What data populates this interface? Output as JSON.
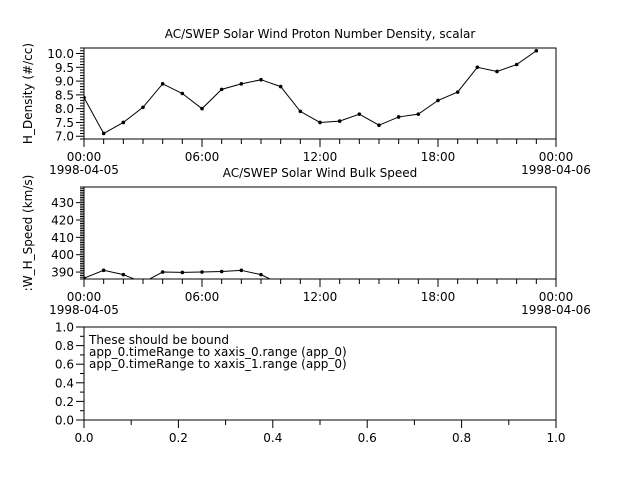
{
  "chart_data": [
    {
      "type": "line",
      "title": "AC/SWEP  Solar Wind Proton Number Density, scalar",
      "ylabel": "H_Density (#/cc)",
      "xlabel": "",
      "x_ticks": [
        {
          "label": "00:00",
          "sublabel": "1998-04-05",
          "hour": 0
        },
        {
          "label": "06:00",
          "sublabel": "",
          "hour": 6
        },
        {
          "label": "12:00",
          "sublabel": "",
          "hour": 12
        },
        {
          "label": "18:00",
          "sublabel": "",
          "hour": 18
        },
        {
          "label": "00:00",
          "sublabel": "1998-04-06",
          "hour": 24
        }
      ],
      "xlim": [
        "1998-04-05 00:00",
        "1998-04-06 00:00"
      ],
      "ylim": [
        6.9,
        10.2
      ],
      "y_ticks": [
        "7.0",
        "7.5",
        "8.0",
        "8.5",
        "9.0",
        "9.5",
        "10.0"
      ],
      "series": [
        {
          "x": [
            "00:00",
            "01:00",
            "02:00",
            "03:00",
            "04:00",
            "05:00",
            "06:00",
            "07:00",
            "08:00",
            "09:00",
            "10:00",
            "11:00",
            "12:00",
            "13:00",
            "14:00",
            "15:00",
            "16:00",
            "17:00",
            "18:00",
            "19:00",
            "20:00",
            "21:00",
            "22:00",
            "23:00"
          ],
          "values": [
            8.4,
            7.1,
            7.5,
            8.05,
            8.9,
            8.55,
            8.0,
            8.7,
            8.9,
            9.05,
            8.8,
            7.9,
            7.5,
            7.55,
            7.8,
            7.4,
            7.7,
            7.8,
            8.3,
            8.6,
            9.5,
            9.35,
            9.6,
            10.1
          ]
        }
      ],
      "grid": false
    },
    {
      "type": "line",
      "title": "AC/SWEP  Solar Wind Bulk Speed",
      "ylabel": ":W_H_Speed (km/s)",
      "xlabel": "",
      "x_ticks": [
        {
          "label": "00:00",
          "sublabel": "1998-04-05",
          "hour": 0
        },
        {
          "label": "06:00",
          "sublabel": "",
          "hour": 6
        },
        {
          "label": "12:00",
          "sublabel": "",
          "hour": 12
        },
        {
          "label": "18:00",
          "sublabel": "",
          "hour": 18
        },
        {
          "label": "00:00",
          "sublabel": "1998-04-06",
          "hour": 24
        }
      ],
      "xlim": [
        "1998-04-05 00:00",
        "1998-04-06 00:00"
      ],
      "ylim": [
        386,
        439
      ],
      "y_ticks": [
        "390",
        "400",
        "410",
        "420",
        "430"
      ],
      "series": [
        {
          "x": [
            "00:00",
            "01:00",
            "02:00",
            "03:00",
            "04:00",
            "05:00",
            "06:00",
            "07:00",
            "08:00",
            "09:00",
            "10:00"
          ],
          "values": [
            386.5,
            391,
            388.5,
            384,
            390,
            389.8,
            390,
            390.3,
            391,
            388.5,
            383
          ]
        }
      ],
      "grid": false
    },
    {
      "type": "line",
      "title": "",
      "xlim": [
        0,
        1
      ],
      "ylim": [
        0,
        1
      ],
      "x_ticks": [
        "0.0",
        "0.2",
        "0.4",
        "0.6",
        "0.8",
        "1.0"
      ],
      "y_ticks": [
        "0.0",
        "0.2",
        "0.4",
        "0.6",
        "0.8",
        "1.0"
      ],
      "annotations": [
        "These should be bound",
        "app_0.timeRange to xaxis_0.range  (app_0)",
        "app_0.timeRange to xaxis_1.range  (app_0)"
      ],
      "series": [],
      "grid": false
    }
  ]
}
